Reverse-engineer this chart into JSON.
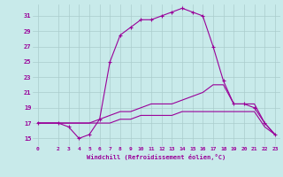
{
  "xlabel": "Windchill (Refroidissement éolien,°C)",
  "ylabel": "",
  "background_color": "#c8eaea",
  "line_color": "#990099",
  "grid_color": "#aacccc",
  "ylim": [
    14.0,
    32.5
  ],
  "xlim": [
    -0.5,
    23.5
  ],
  "yticks": [
    15,
    17,
    19,
    21,
    23,
    25,
    27,
    29,
    31
  ],
  "xticks": [
    0,
    2,
    3,
    4,
    5,
    6,
    7,
    8,
    9,
    10,
    11,
    12,
    13,
    14,
    15,
    16,
    17,
    18,
    19,
    20,
    21,
    22,
    23
  ],
  "series": [
    {
      "x": [
        0,
        2,
        3,
        4,
        5,
        6,
        7,
        8,
        9,
        10,
        11,
        12,
        13,
        14,
        15,
        16,
        17,
        18,
        19,
        20,
        21,
        22,
        23
      ],
      "y": [
        17,
        17,
        16.5,
        15,
        15.5,
        17.5,
        25,
        28.5,
        29.5,
        30.5,
        30.5,
        31,
        31.5,
        32,
        31.5,
        31,
        27,
        22.5,
        19.5,
        19.5,
        19,
        17,
        15.5
      ],
      "marker": true
    },
    {
      "x": [
        0,
        2,
        3,
        4,
        5,
        6,
        7,
        8,
        9,
        10,
        11,
        12,
        13,
        14,
        15,
        16,
        17,
        18,
        19,
        20,
        21,
        22,
        23
      ],
      "y": [
        17,
        17,
        17,
        17,
        17,
        17.5,
        18,
        18.5,
        18.5,
        19,
        19.5,
        19.5,
        19.5,
        20,
        20.5,
        21,
        22,
        22,
        19.5,
        19.5,
        19.5,
        17,
        15.5
      ],
      "marker": false
    },
    {
      "x": [
        0,
        2,
        3,
        4,
        5,
        6,
        7,
        8,
        9,
        10,
        11,
        12,
        13,
        14,
        15,
        16,
        17,
        18,
        19,
        20,
        21,
        22,
        23
      ],
      "y": [
        17,
        17,
        17,
        17,
        17,
        17,
        17,
        17.5,
        17.5,
        18,
        18,
        18,
        18,
        18.5,
        18.5,
        18.5,
        18.5,
        18.5,
        18.5,
        18.5,
        18.5,
        16.5,
        15.5
      ],
      "marker": false
    }
  ]
}
